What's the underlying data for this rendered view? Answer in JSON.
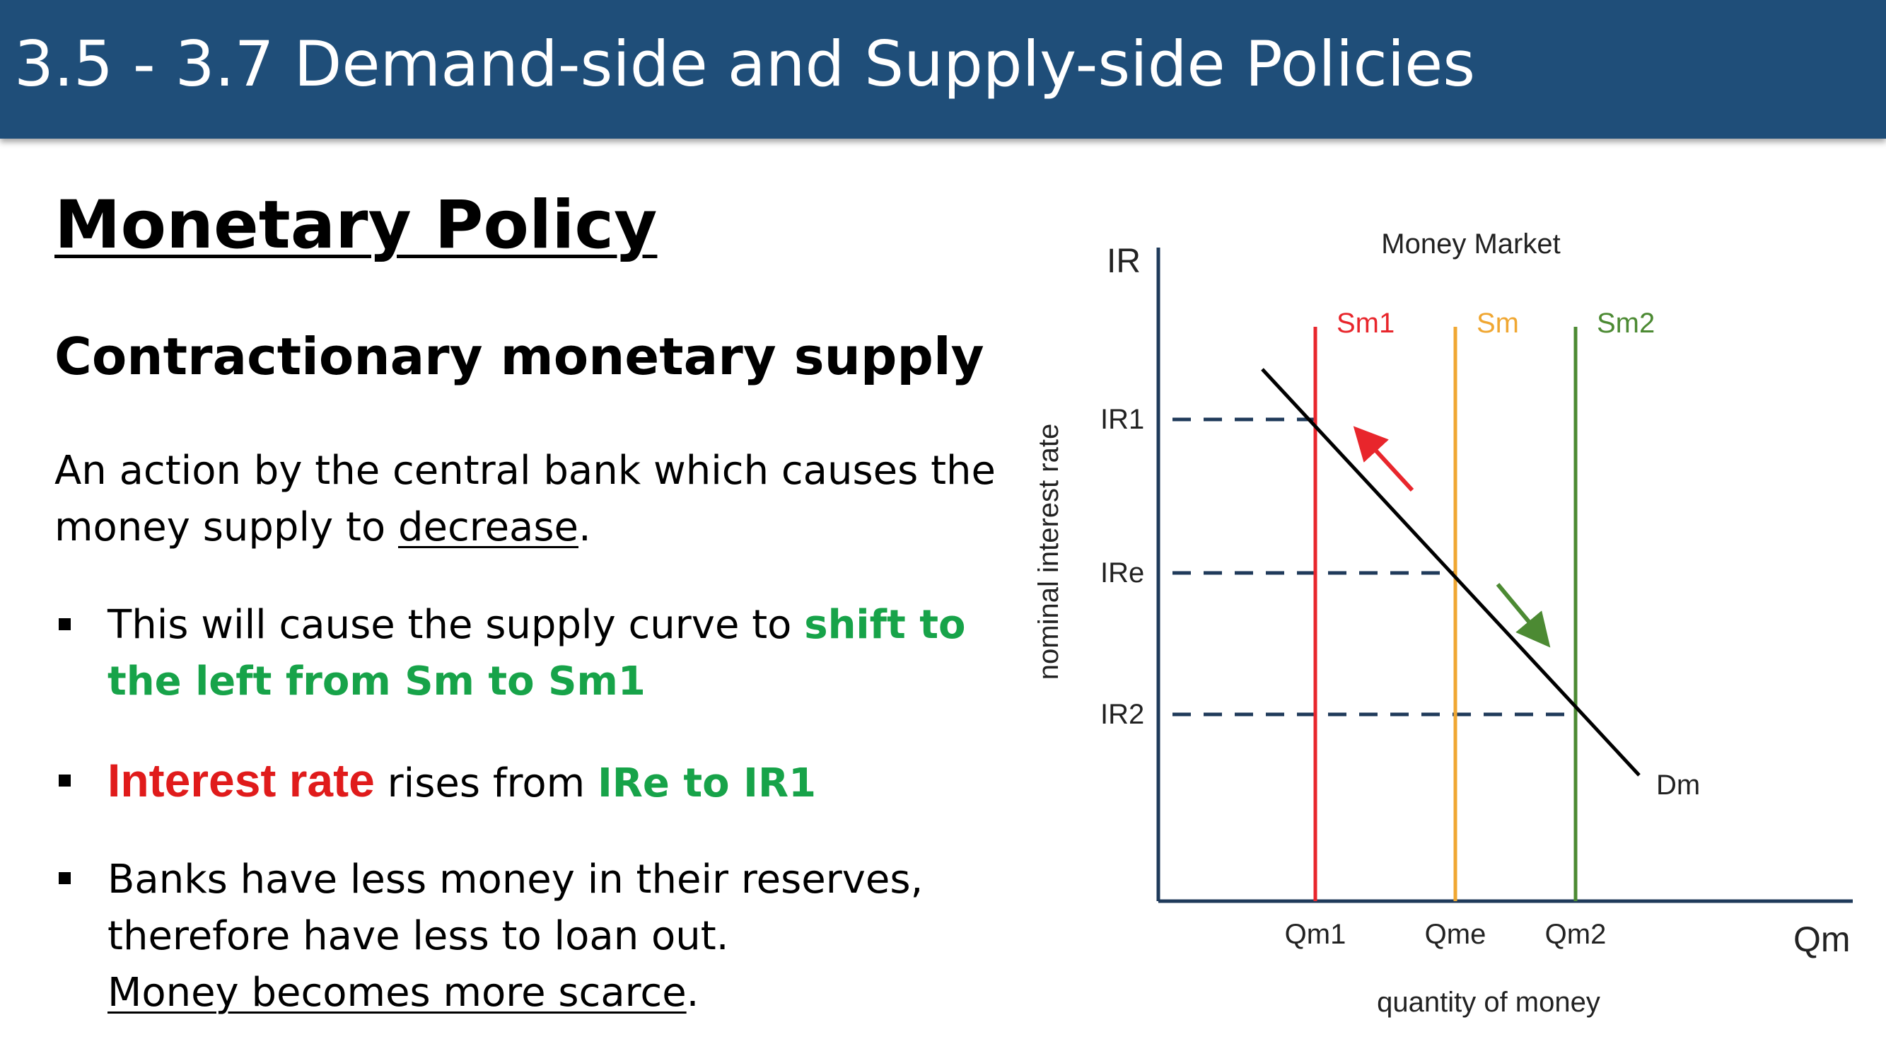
{
  "header": {
    "title": "3.5 - 3.7 Demand-side and Supply-side Policies"
  },
  "heading": "Monetary Policy",
  "subheading": "Contractionary monetary supply",
  "intro": {
    "line1": "An action by the central bank which causes the",
    "line2_prefix": "money supply to ",
    "line2_underlined": "decrease",
    "line2_suffix": "."
  },
  "bullets": [
    {
      "prefix": "This will cause the supply curve to ",
      "highlight_line1": "shift to",
      "highlight_line2": "the left from Sm to Sm1"
    },
    {
      "red": "Interest rate",
      "middle": " rises from ",
      "green": "IRe to IR1"
    },
    {
      "line1": "Banks have less money in their reserves,",
      "line2": "therefore have less to loan out.",
      "line3_underlined": "Money becomes more scarce",
      "line3_suffix": "."
    }
  ],
  "colors": {
    "header_bg": "#1f4e79",
    "highlight_green": "#17a349",
    "highlight_red": "#e01b1b",
    "sm1": "#e8262c",
    "sm": "#f0a732",
    "sm2": "#4c8a33",
    "dashed": "#1f3a5a"
  },
  "chart_data": {
    "type": "line",
    "title": "Money Market",
    "xlabel": "quantity of money",
    "ylabel": "nominal interest rate",
    "x_axis_end_label": "Qm",
    "y_axis_end_label": "IR",
    "x_ticks": [
      "Qm1",
      "Qme",
      "Qm2"
    ],
    "y_ticks": [
      "IR1",
      "IRe",
      "IR2"
    ],
    "series": [
      {
        "name": "Sm1",
        "kind": "vertical",
        "x": "Qm1",
        "color": "#e8262c"
      },
      {
        "name": "Sm",
        "kind": "vertical",
        "x": "Qme",
        "color": "#f0a732"
      },
      {
        "name": "Sm2",
        "kind": "vertical",
        "x": "Qm2",
        "color": "#4c8a33"
      },
      {
        "name": "Dm",
        "kind": "downward-sloping",
        "color": "#000000"
      }
    ],
    "equilibria": [
      {
        "x": "Qm1",
        "y": "IR1"
      },
      {
        "x": "Qme",
        "y": "IRe"
      },
      {
        "x": "Qm2",
        "y": "IR2"
      }
    ],
    "arrows": [
      {
        "direction": "up-left",
        "color": "#e8262c"
      },
      {
        "direction": "down-right",
        "color": "#4c8a33"
      }
    ],
    "grid": false
  }
}
